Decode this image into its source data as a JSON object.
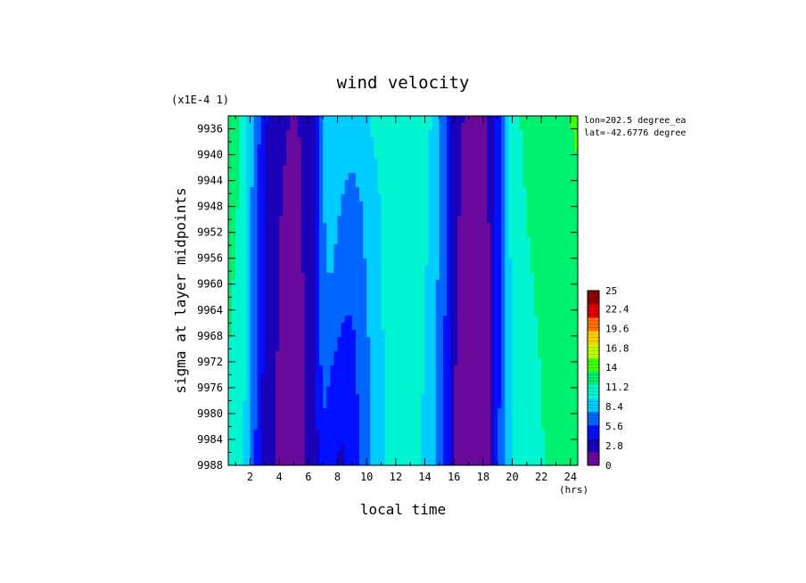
{
  "chart_data": {
    "type": "heatmap",
    "title": "wind velocity",
    "xlabel": "local time",
    "ylabel": "sigma at layer midpoints",
    "x_unit": "(hrs)",
    "y_scale_note": "(x1E-4 1)",
    "annotations": [
      "lon=202.5 degree_ea",
      "lat=-42.6776 degree"
    ],
    "x_range": [
      0.5,
      24.5
    ],
    "y_range": [
      9934,
      9988
    ],
    "x_ticks": [
      2,
      4,
      6,
      8,
      10,
      12,
      14,
      16,
      18,
      20,
      22,
      24
    ],
    "x_tick_labels": [
      "2",
      "4",
      "6",
      "8",
      "10",
      "12",
      "14",
      "16",
      "18",
      "20",
      "22",
      "24"
    ],
    "y_ticks": [
      9936,
      9940,
      9944,
      9948,
      9952,
      9956,
      9960,
      9964,
      9968,
      9972,
      9976,
      9980,
      9984,
      9988
    ],
    "y_tick_labels": [
      "9936",
      "9940",
      "9944",
      "9948",
      "9952",
      "9956",
      "9960",
      "9964",
      "9968",
      "9972",
      "9976",
      "9980",
      "9984",
      "9988"
    ],
    "colorbar": {
      "min": 0,
      "max": 25,
      "tick_values": [
        0,
        2.8,
        5.6,
        8.4,
        11.2,
        14,
        16.8,
        19.6,
        22.4,
        25
      ],
      "tick_labels": [
        "0",
        "2.8",
        "5.6",
        "8.4",
        "11.2",
        "14",
        "16.8",
        "19.6",
        "22.4",
        "25"
      ],
      "colors": [
        "#6a0a9c",
        "#1a00b8",
        "#0010ff",
        "#0066ff",
        "#00ccff",
        "#00f5d0",
        "#00f070",
        "#40ff00",
        "#c0ff00",
        "#ffd000",
        "#ff7000",
        "#e00000",
        "#900000"
      ]
    },
    "x": [
      0.5,
      1,
      1.5,
      2,
      2.5,
      3,
      3.5,
      4,
      4.5,
      5,
      5.5,
      6,
      6.5,
      7,
      7.5,
      8,
      8.5,
      9,
      9.5,
      10,
      10.5,
      11,
      11.5,
      12,
      12.5,
      13,
      13.5,
      14,
      14.5,
      15,
      15.5,
      16,
      16.5,
      17,
      17.5,
      18,
      18.5,
      19,
      19.5,
      20,
      20.5,
      21,
      21.5,
      22,
      22.5,
      23,
      23.5,
      24,
      24.5
    ],
    "y": [
      9934,
      9946,
      9958,
      9970,
      9982,
      9988
    ],
    "values": [
      [
        12.2,
        12.0,
        11.2,
        8.5,
        6.5,
        4.2,
        3.0,
        2.2,
        2.0,
        1.8,
        2.0,
        2.5,
        4.0,
        7.5,
        8.5,
        8.5,
        8.5,
        8.5,
        9.0,
        9.5,
        10.0,
        10.5,
        11.0,
        11.2,
        11.0,
        10.8,
        10.5,
        10.2,
        9.5,
        7.8,
        6.2,
        3.0,
        2.0,
        1.8,
        1.6,
        1.8,
        2.2,
        4.5,
        8.5,
        10.8,
        11.5,
        11.8,
        12.0,
        12.2,
        12.5,
        12.8,
        13.0,
        13.5,
        14.0
      ],
      [
        12.0,
        11.8,
        11.0,
        8.2,
        6.0,
        3.8,
        2.6,
        2.0,
        1.8,
        1.7,
        1.9,
        2.4,
        3.8,
        7.6,
        8.4,
        8.0,
        7.6,
        7.3,
        7.6,
        8.2,
        9.0,
        9.8,
        10.5,
        10.9,
        10.8,
        10.6,
        10.3,
        10.0,
        9.2,
        7.5,
        5.8,
        2.6,
        1.8,
        1.4,
        1.4,
        1.6,
        2.1,
        4.6,
        8.0,
        10.5,
        11.3,
        11.6,
        11.8,
        12.0,
        12.2,
        12.4,
        12.6,
        12.8,
        13.0
      ],
      [
        11.8,
        11.5,
        10.8,
        8.0,
        5.8,
        3.6,
        2.4,
        1.9,
        1.7,
        1.6,
        1.8,
        2.3,
        3.6,
        7.4,
        7.9,
        7.3,
        6.9,
        6.6,
        7.0,
        7.8,
        8.7,
        9.6,
        10.3,
        10.7,
        10.6,
        10.4,
        10.1,
        9.8,
        9.0,
        7.3,
        5.5,
        2.4,
        1.5,
        1.0,
        1.1,
        1.4,
        2.0,
        4.8,
        7.7,
        10.2,
        11.0,
        11.4,
        11.6,
        11.8,
        12.0,
        12.2,
        12.4,
        12.6,
        12.8
      ],
      [
        11.6,
        11.2,
        10.5,
        7.8,
        5.5,
        3.4,
        2.3,
        1.8,
        1.6,
        1.6,
        1.7,
        2.2,
        3.4,
        6.8,
        6.4,
        5.6,
        5.0,
        5.2,
        6.2,
        7.4,
        8.4,
        9.4,
        10.1,
        10.5,
        10.4,
        10.2,
        9.9,
        9.6,
        8.8,
        7.0,
        5.2,
        2.2,
        1.3,
        0.8,
        0.9,
        1.3,
        2.0,
        5.0,
        7.6,
        10.0,
        10.8,
        11.2,
        11.4,
        11.6,
        11.8,
        12.0,
        12.2,
        12.4,
        12.6
      ],
      [
        11.4,
        11.0,
        10.2,
        7.5,
        5.2,
        3.2,
        2.2,
        1.7,
        1.5,
        1.5,
        1.6,
        2.1,
        3.2,
        5.8,
        4.6,
        4.0,
        3.9,
        4.6,
        6.0,
        7.2,
        8.3,
        9.3,
        10.0,
        10.4,
        10.3,
        10.1,
        9.8,
        9.5,
        8.6,
        6.8,
        5.0,
        2.0,
        1.1,
        0.6,
        0.7,
        1.2,
        2.0,
        5.2,
        7.6,
        9.8,
        10.6,
        11.0,
        11.3,
        11.5,
        11.7,
        11.9,
        12.1,
        12.3,
        12.5
      ],
      [
        11.3,
        10.9,
        10.1,
        7.4,
        5.1,
        3.1,
        2.1,
        1.7,
        1.5,
        1.5,
        1.6,
        2.1,
        3.1,
        5.2,
        4.3,
        3.8,
        3.7,
        4.5,
        5.9,
        7.1,
        8.2,
        9.2,
        9.9,
        10.3,
        10.2,
        10.0,
        9.7,
        9.4,
        8.5,
        6.7,
        4.9,
        1.9,
        1.0,
        0.5,
        0.6,
        1.2,
        2.0,
        5.3,
        7.6,
        9.7,
        10.5,
        10.9,
        11.2,
        11.4,
        11.6,
        11.8,
        12.0,
        12.2,
        12.4
      ]
    ]
  }
}
